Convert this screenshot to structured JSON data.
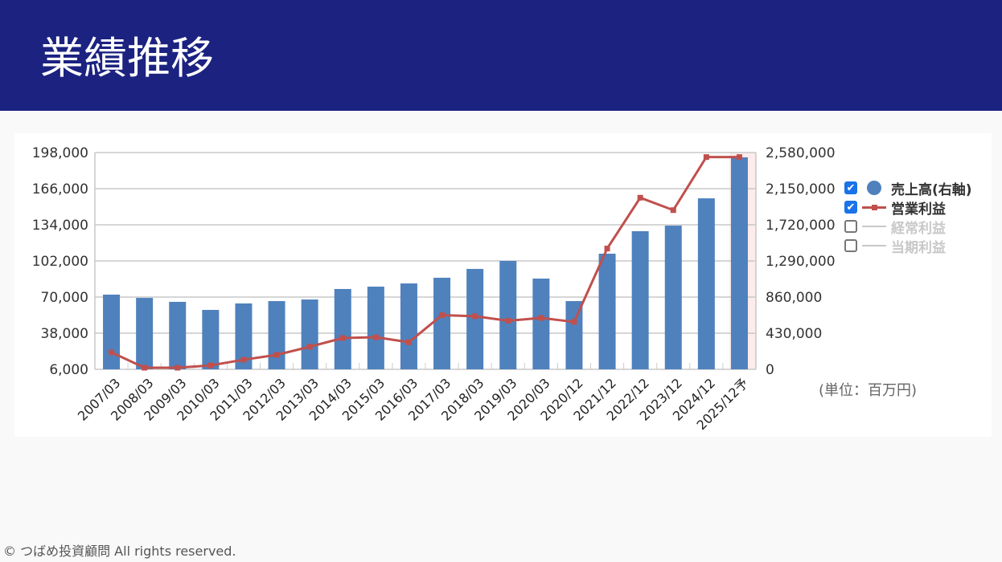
{
  "header": {
    "title": "業績推移"
  },
  "footer": {
    "copyright": "© つばめ投資顧問 All rights reserved."
  },
  "unit_label": "(単位：百万円)",
  "legend": [
    {
      "label": "売上高(右軸)",
      "checked": true,
      "color": "#4f81bd",
      "symbol": "circle"
    },
    {
      "label": "営業利益",
      "checked": true,
      "color": "#c0504d",
      "symbol": "line-square"
    },
    {
      "label": "経常利益",
      "checked": false,
      "color": "#c8c8c8",
      "symbol": "line"
    },
    {
      "label": "当期利益",
      "checked": false,
      "color": "#c8c8c8",
      "symbol": "line"
    }
  ],
  "chart_data": {
    "type": "bar+line",
    "categories": [
      "2007/03",
      "2008/03",
      "2009/03",
      "2010/03",
      "2011/03",
      "2012/03",
      "2013/03",
      "2014/03",
      "2015/03",
      "2016/03",
      "2017/03",
      "2018/03",
      "2019/03",
      "2020/03",
      "2020/12",
      "2021/12",
      "2022/12",
      "2023/12",
      "2024/12",
      "2025/12予"
    ],
    "series": [
      {
        "name": "売上高(右軸)",
        "type": "bar",
        "axis": "right",
        "values": [
          889000,
          850000,
          803000,
          707000,
          784000,
          812000,
          831000,
          956000,
          984000,
          1022000,
          1090000,
          1195000,
          1290000,
          1080000,
          812000,
          1376000,
          1644000,
          1710000,
          2035000,
          2523000
        ]
      },
      {
        "name": "営業利益",
        "type": "line",
        "axis": "left",
        "values": [
          21000,
          7400,
          7400,
          9500,
          14500,
          18800,
          26000,
          33700,
          34400,
          30000,
          54000,
          53000,
          49000,
          51500,
          48000,
          113000,
          158000,
          147000,
          194000,
          194000
        ]
      }
    ],
    "left_axis": {
      "min": 6000,
      "max": 198000,
      "ticks": [
        "6,000",
        "38,000",
        "70,000",
        "102,000",
        "134,000",
        "166,000",
        "198,000"
      ]
    },
    "right_axis": {
      "min": 0,
      "max": 2580000,
      "ticks": [
        "0",
        "430,000",
        "860,000",
        "1,290,000",
        "1,720,000",
        "2,150,000",
        "2,580,000"
      ]
    },
    "highlight_category": "2025/12予",
    "grid": true,
    "legend_position": "right"
  }
}
